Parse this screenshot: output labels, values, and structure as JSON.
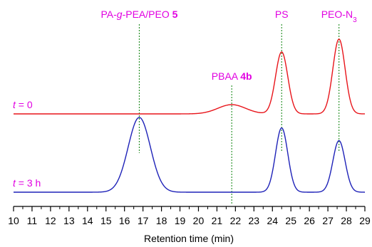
{
  "chart_data": {
    "type": "line",
    "xlabel": "Retention time (min)",
    "ylabel": "",
    "xlim": [
      10,
      29
    ],
    "x_ticks": [
      "10",
      "11",
      "12",
      "13",
      "14",
      "15",
      "16",
      "17",
      "18",
      "19",
      "20",
      "21",
      "22",
      "23",
      "24",
      "25",
      "26",
      "27",
      "28",
      "29"
    ],
    "grid": false,
    "series": [
      {
        "name": "t = 0",
        "label_italic": "t",
        "label_rest": " = 0",
        "color": "#e8141a",
        "baseline": 0.62,
        "peaks": [
          {
            "center": 21.8,
            "sigma": 0.75,
            "height": 0.13
          },
          {
            "center": 24.5,
            "sigma": 0.33,
            "height": 0.87
          },
          {
            "center": 27.6,
            "sigma": 0.33,
            "height": 1.05
          }
        ]
      },
      {
        "name": "t = 3 h",
        "label_italic": "t",
        "label_rest": " = 3 h",
        "color": "#1e22b8",
        "baseline": 0.0,
        "peaks": [
          {
            "center": 16.8,
            "sigma": 0.6,
            "height": 1.0
          },
          {
            "center": 24.5,
            "sigma": 0.33,
            "height": 0.86
          },
          {
            "center": 27.6,
            "sigma": 0.33,
            "height": 0.69
          }
        ]
      }
    ],
    "annotations": [
      {
        "x": 16.8,
        "parts": [
          {
            "t": "PA-"
          },
          {
            "t": "g",
            "i": true
          },
          {
            "t": "-PEA/PEO "
          },
          {
            "t": "5",
            "b": true
          }
        ]
      },
      {
        "x": 21.8,
        "parts": [
          {
            "t": "PBAA "
          },
          {
            "t": "4b",
            "b": true
          }
        ]
      },
      {
        "x": 24.5,
        "parts": [
          {
            "t": "PS"
          }
        ]
      },
      {
        "x": 27.6,
        "parts": [
          {
            "t": "PEO-N"
          },
          {
            "t": "3",
            "sub": true
          }
        ]
      }
    ],
    "colors": {
      "annotation": "#e100e1",
      "marker_line": "#1e8c1e",
      "axis": "#000000"
    }
  }
}
